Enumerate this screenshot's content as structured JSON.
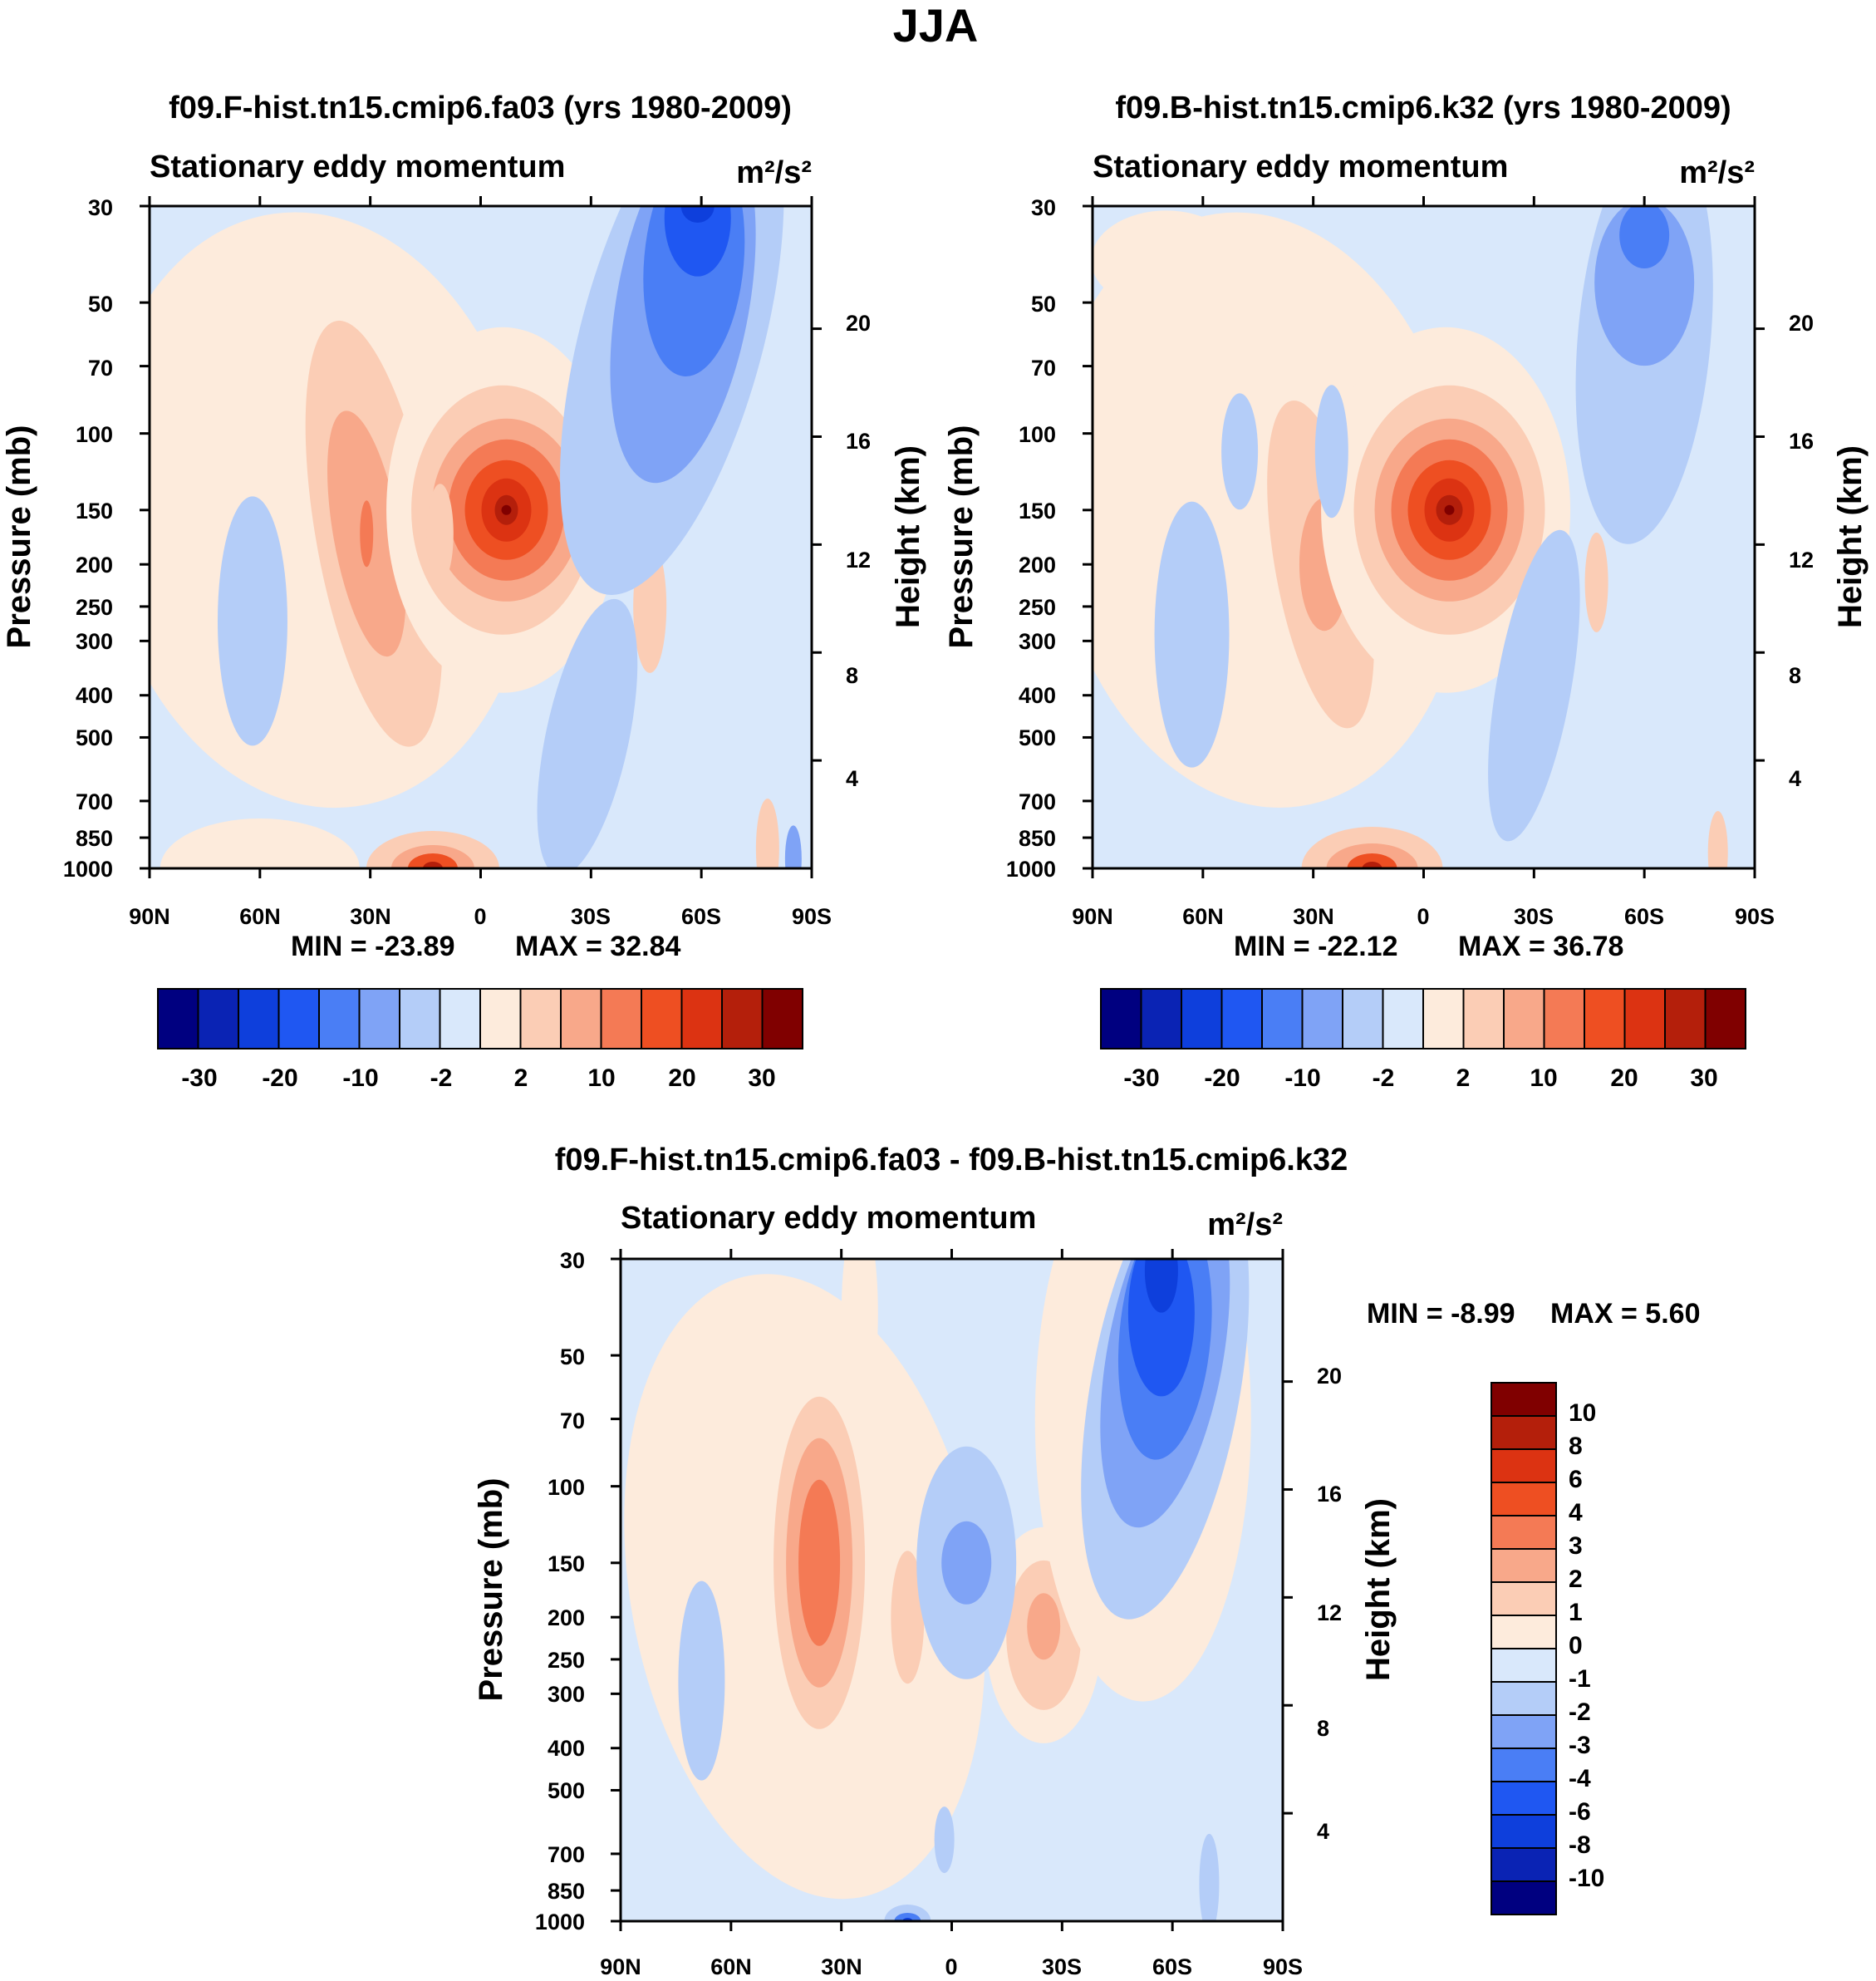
{
  "figure": {
    "title": "JJA",
    "colors": {
      "contour_scale_16": [
        "#000080",
        "#0a23b4",
        "#0e3fdc",
        "#1f57f2",
        "#4a7ef5",
        "#7fa3f6",
        "#b4cdf8",
        "#d9e8fb",
        "#fdebdc",
        "#fbcdb5",
        "#f8a88a",
        "#f47a55",
        "#ee4f22",
        "#dc3312",
        "#b41f0b",
        "#800000"
      ]
    }
  },
  "chart_data": [
    {
      "id": "panel-1",
      "type": "contour",
      "title": "f09.F-hist.tn15.cmip6.fa03 (yrs 1980-2009)",
      "subtitle_left": "Stationary eddy momentum",
      "units": "m²/s²",
      "xlabel": "",
      "ylabel_left": "Pressure (mb)",
      "ylabel_right": "Height (km)",
      "x_ticks": [
        "90N",
        "60N",
        "30N",
        "0",
        "30S",
        "60S",
        "90S"
      ],
      "x_range": [
        90,
        -90
      ],
      "p_ticks": [
        30,
        50,
        70,
        100,
        150,
        200,
        250,
        300,
        400,
        500,
        700,
        850,
        1000
      ],
      "p_range": [
        30,
        1000
      ],
      "height_ticks": [
        4,
        8,
        12,
        16,
        20
      ],
      "min_label": "MIN = -23.89",
      "max_label": "MAX =  32.84",
      "min": -23.89,
      "max": 32.84,
      "contour_levels": [
        -30,
        -25,
        -20,
        -15,
        -10,
        -5,
        -2,
        0,
        2,
        5,
        10,
        15,
        20,
        25,
        30
      ],
      "colorbar_labels": [
        "-30",
        "-20",
        "-10",
        "-2",
        "2",
        "10",
        "20",
        "30"
      ],
      "features": [
        {
          "kind": "max",
          "lat": -8,
          "p": 150,
          "value": 32.84
        },
        {
          "kind": "max",
          "lat": 31,
          "p": 175,
          "value": 8
        },
        {
          "kind": "max",
          "lat": 13,
          "p": 1000,
          "value": 18
        },
        {
          "kind": "min",
          "lat": -58,
          "p": 30,
          "value": -23.89
        },
        {
          "kind": "min",
          "lat": -28,
          "p": 450,
          "value": -4
        },
        {
          "kind": "min",
          "lat": 62,
          "p": 300,
          "value": -3
        }
      ]
    },
    {
      "id": "panel-2",
      "type": "contour",
      "title": "f09.B-hist.tn15.cmip6.k32 (yrs 1980-2009)",
      "subtitle_left": "Stationary eddy momentum",
      "units": "m²/s²",
      "xlabel": "",
      "ylabel_left": "Pressure (mb)",
      "ylabel_right": "Height (km)",
      "x_ticks": [
        "90N",
        "60N",
        "30N",
        "0",
        "30S",
        "60S",
        "90S"
      ],
      "x_range": [
        90,
        -90
      ],
      "p_ticks": [
        30,
        50,
        70,
        100,
        150,
        200,
        250,
        300,
        400,
        500,
        700,
        850,
        1000
      ],
      "p_range": [
        30,
        1000
      ],
      "height_ticks": [
        4,
        8,
        12,
        16,
        20
      ],
      "min_label": "MIN = -22.12",
      "max_label": "MAX =  36.78",
      "min": -22.12,
      "max": 36.78,
      "contour_levels": [
        -30,
        -25,
        -20,
        -15,
        -10,
        -5,
        -2,
        0,
        2,
        5,
        10,
        15,
        20,
        25,
        30
      ],
      "colorbar_labels": [
        "-30",
        "-20",
        "-10",
        "-2",
        "2",
        "10",
        "20",
        "30"
      ],
      "features": [
        {
          "kind": "max",
          "lat": -7,
          "p": 150,
          "value": 36.78
        },
        {
          "kind": "max",
          "lat": 28,
          "p": 190,
          "value": 6
        },
        {
          "kind": "max",
          "lat": 14,
          "p": 1000,
          "value": 16
        },
        {
          "kind": "min",
          "lat": -60,
          "p": 40,
          "value": -22.12
        },
        {
          "kind": "min",
          "lat": -30,
          "p": 350,
          "value": -3
        },
        {
          "kind": "min",
          "lat": 63,
          "p": 300,
          "value": -3
        }
      ]
    },
    {
      "id": "panel-diff",
      "type": "contour",
      "title": "f09.F-hist.tn15.cmip6.fa03 - f09.B-hist.tn15.cmip6.k32",
      "subtitle_left": "Stationary eddy momentum",
      "units": "m²/s²",
      "xlabel": "",
      "ylabel_left": "Pressure (mb)",
      "ylabel_right": "Height (km)",
      "x_ticks": [
        "90N",
        "60N",
        "30N",
        "0",
        "30S",
        "60S",
        "90S"
      ],
      "x_range": [
        90,
        -90
      ],
      "p_ticks": [
        30,
        50,
        70,
        100,
        150,
        200,
        250,
        300,
        400,
        500,
        700,
        850,
        1000
      ],
      "p_range": [
        30,
        1000
      ],
      "height_ticks": [
        4,
        8,
        12,
        16,
        20
      ],
      "min_label": "MIN =  -8.99",
      "max_label": "MAX =   5.60",
      "min": -8.99,
      "max": 5.6,
      "contour_levels": [
        -10,
        -8,
        -6,
        -4,
        -3,
        -2,
        -1,
        0,
        1,
        2,
        3,
        4,
        6,
        8,
        10
      ],
      "colorbar_labels": [
        "10",
        "8",
        "6",
        "4",
        "3",
        "2",
        "1",
        "0",
        "-1",
        "-2",
        "-3",
        "-4",
        "-6",
        "-8",
        "-10"
      ],
      "features": [
        {
          "kind": "max",
          "lat": 36,
          "p": 150,
          "value": 5.6
        },
        {
          "kind": "max",
          "lat": -25,
          "p": 220,
          "value": 3
        },
        {
          "kind": "max",
          "lat": 13,
          "p": 200,
          "value": 2
        },
        {
          "kind": "min",
          "lat": -58,
          "p": 35,
          "value": -8.99
        },
        {
          "kind": "min",
          "lat": -5,
          "p": 150,
          "value": -4
        },
        {
          "kind": "min",
          "lat": 12,
          "p": 1000,
          "value": -5
        },
        {
          "kind": "min",
          "lat": 70,
          "p": 280,
          "value": -2
        }
      ]
    }
  ]
}
